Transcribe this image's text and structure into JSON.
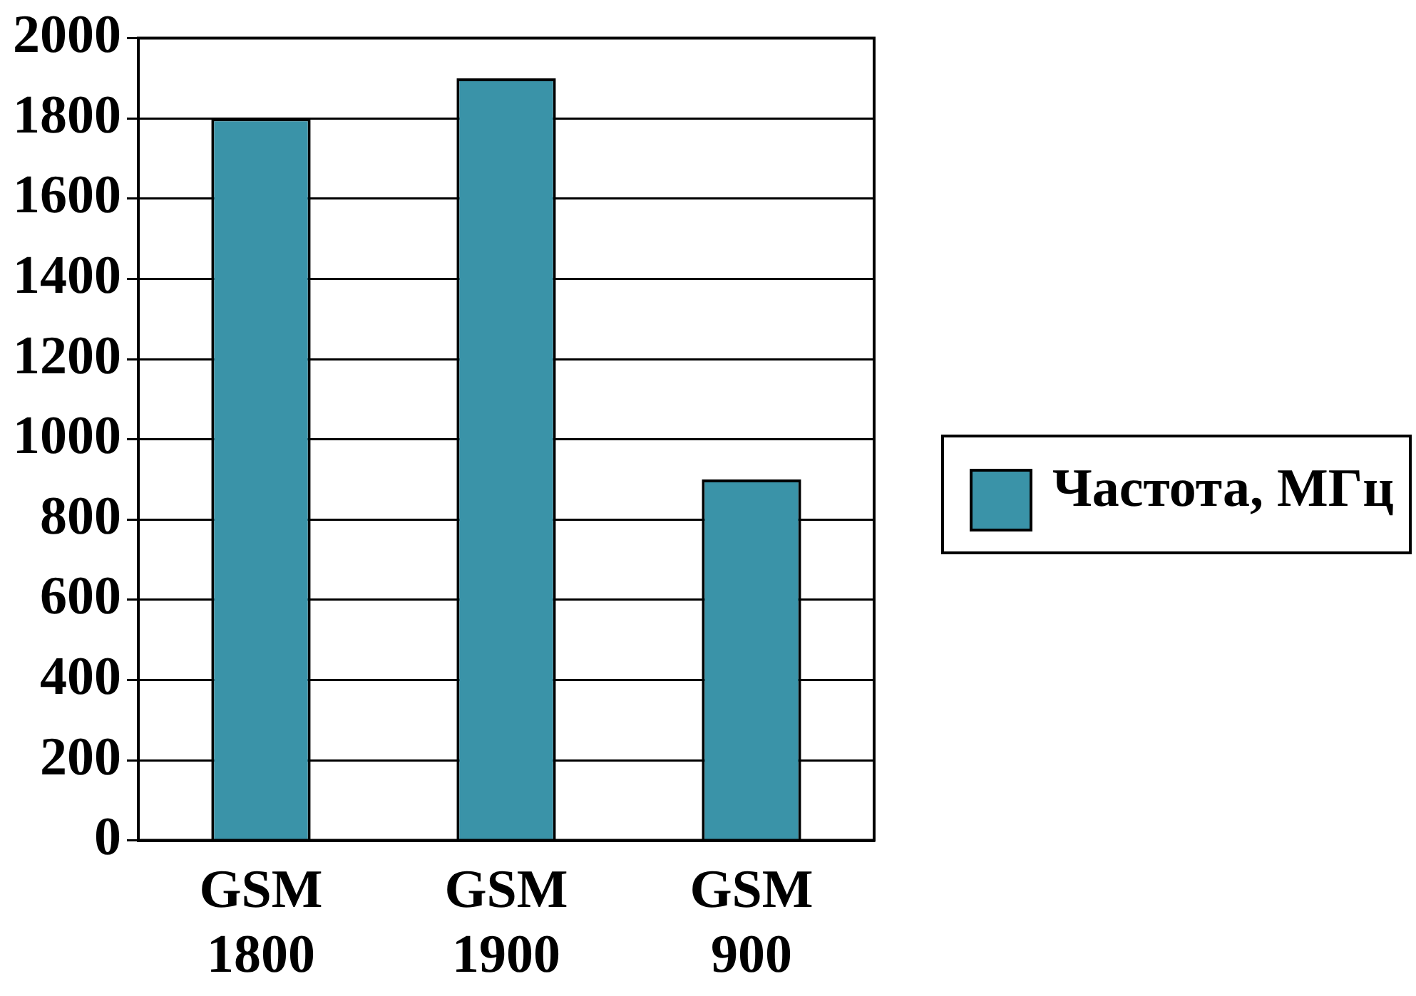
{
  "chart_data": {
    "type": "bar",
    "categories": [
      "GSM 1800",
      "GSM 1900",
      "GSM 900"
    ],
    "series": [
      {
        "name": "Частота, МГц",
        "color": "#3a93a8",
        "values": [
          1800,
          1900,
          900
        ]
      }
    ],
    "ylim": [
      0,
      2000
    ],
    "yticks": [
      0,
      200,
      400,
      600,
      800,
      1000,
      1200,
      1400,
      1600,
      1800,
      2000
    ],
    "grid": "y",
    "legend": "right"
  }
}
